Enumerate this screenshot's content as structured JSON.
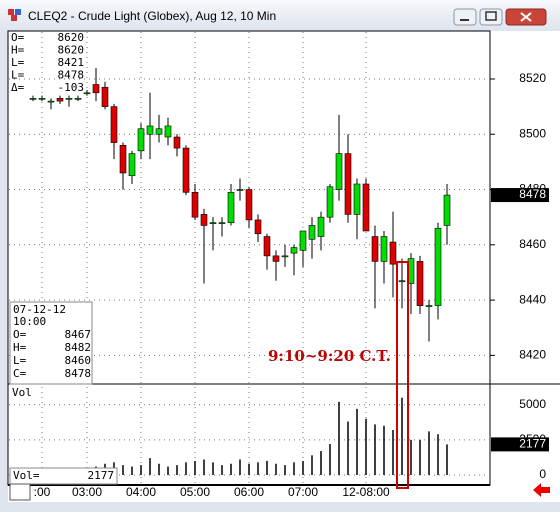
{
  "window": {
    "title": "CLEQ2 - Crude Light (Globex), Aug 12, 10 Min"
  },
  "ohlc_box": {
    "labels": [
      "O=",
      "H=",
      "L=",
      "L=",
      "Δ="
    ],
    "values": [
      8620,
      8620,
      8421,
      8478,
      -103
    ]
  },
  "bar_box": {
    "date": "07-12-12",
    "time": "10:00",
    "labels": [
      "O=",
      "H=",
      "L=",
      "C="
    ],
    "values": [
      8467,
      8482,
      8460,
      8478
    ]
  },
  "chart_data": {
    "type": "candlestick",
    "annotation": "9:10~9:20 C.T.",
    "up_color": "#00dd00",
    "down_color": "#dd0000",
    "open": [
      8513,
      8513,
      8512,
      8513,
      8513,
      8513,
      8515,
      8518,
      8517,
      8510,
      8496,
      8485,
      8494,
      8500,
      8500,
      8499,
      8499,
      8495,
      8479,
      8471,
      8468,
      8468,
      8468,
      8480,
      8480,
      8469,
      8463,
      8456,
      8456,
      8457,
      8458,
      8462,
      8463,
      8470,
      8480,
      8493,
      8471,
      8482,
      8463,
      8454,
      8461,
      8447,
      8446,
      8454,
      8438,
      8438,
      8467
    ],
    "high": [
      8514,
      8514,
      8513,
      8514,
      8514,
      8514,
      8516,
      8524,
      8519,
      8511,
      8497,
      8494,
      8504,
      8515,
      8507,
      8506,
      8500,
      8496,
      8482,
      8473,
      8470,
      8470,
      8482,
      8484,
      8481,
      8471,
      8464,
      8458,
      8460,
      8460,
      8465,
      8470,
      8472,
      8482,
      8507,
      8500,
      8484,
      8484,
      8467,
      8465,
      8472,
      8455,
      8457,
      8456,
      8440,
      8468,
      8482
    ],
    "low": [
      8512,
      8512,
      8509,
      8511,
      8510,
      8512,
      8514,
      8512,
      8509,
      8491,
      8480,
      8482,
      8491,
      8491,
      8497,
      8496,
      8492,
      8478,
      8469,
      8446,
      8458,
      8463,
      8467,
      8476,
      8466,
      8461,
      8451,
      8447,
      8452,
      8449,
      8452,
      8455,
      8458,
      8468,
      8476,
      8468,
      8462,
      8465,
      8437,
      8446,
      8441,
      8437,
      8435,
      8435,
      8425,
      8433,
      8460
    ],
    "close": [
      8513,
      8513,
      8512,
      8512,
      8513,
      8513,
      8515,
      8515,
      8510,
      8497,
      8486,
      8493,
      8502,
      8503,
      8502,
      8503,
      8495,
      8479,
      8470,
      8467,
      8468,
      8468,
      8479,
      8480,
      8469,
      8464,
      8456,
      8454,
      8456,
      8459,
      8465,
      8467,
      8470,
      8481,
      8493,
      8471,
      8482,
      8465,
      8454,
      8463,
      8453,
      8447,
      8455,
      8438,
      8438,
      8466,
      8478
    ],
    "ylim": [
      8410,
      8537
    ],
    "yticks": [
      8420,
      8440,
      8460,
      8480,
      8500,
      8520
    ],
    "xticks": [
      {
        "value": 1,
        "label": ":00"
      },
      {
        "value": 6,
        "label": "03:00"
      },
      {
        "value": 12,
        "label": "04:00"
      },
      {
        "value": 18,
        "label": "05:00"
      },
      {
        "value": 24,
        "label": "06:00"
      },
      {
        "value": 30,
        "label": "07:00"
      },
      {
        "value": 37,
        "label": "12-08:00"
      }
    ],
    "grid": true,
    "volume": {
      "label": "Vol",
      "readout_label": "Vol=",
      "values": [
        300,
        300,
        400,
        300,
        300,
        300,
        300,
        600,
        800,
        900,
        700,
        600,
        700,
        1200,
        800,
        600,
        700,
        900,
        1000,
        1100,
        900,
        700,
        800,
        1100,
        800,
        900,
        1000,
        800,
        700,
        900,
        1000,
        1400,
        1700,
        2200,
        5200,
        3800,
        4700,
        4000,
        3600,
        3500,
        3200,
        5500,
        2500,
        2500,
        3100,
        2900,
        2177
      ],
      "ylim": [
        0,
        6400
      ],
      "yticks": [
        0,
        2500,
        5000
      ]
    }
  }
}
